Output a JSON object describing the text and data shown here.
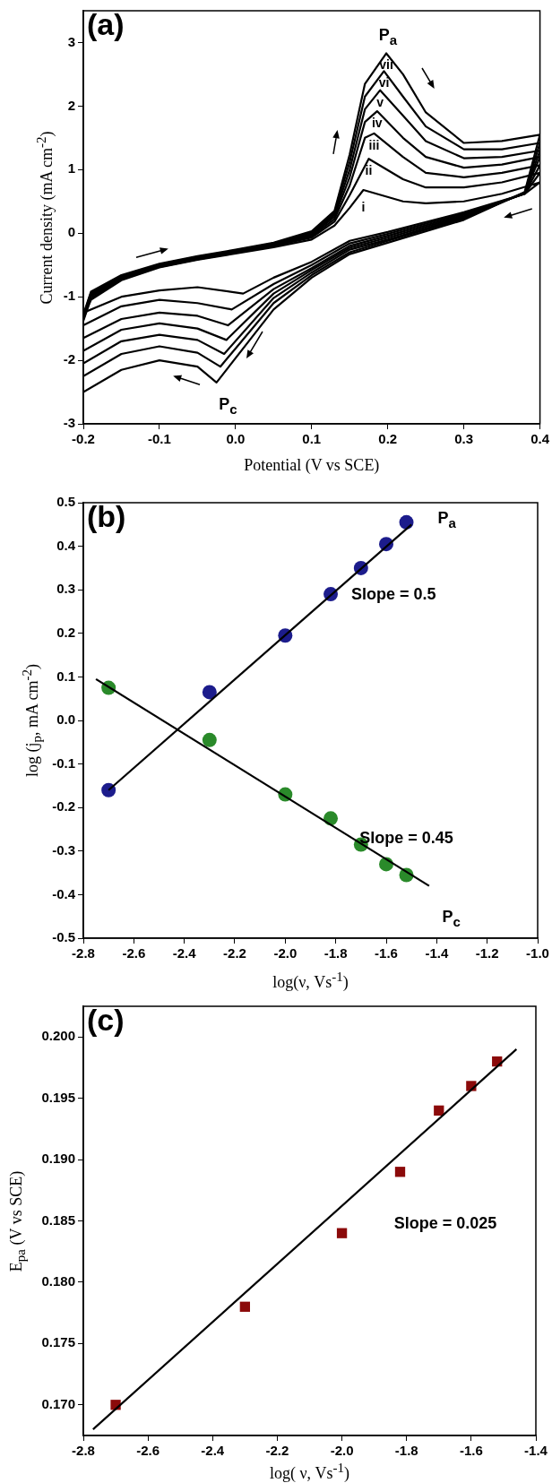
{
  "chart_data": [
    {
      "type": "line",
      "xlabel": "Potential (V vs SCE)",
      "ylabel": "Current density (mA cm$^{-2}$)",
      "xlim": [
        -0.2,
        0.4
      ],
      "xticks": [
        -0.2,
        -0.1,
        {
          "value": 0,
          "label": "0.0"
        },
        0.1,
        0.2,
        0.3,
        0.4
      ],
      "ylim": [
        -3,
        3.5
      ],
      "yticks": [
        -3,
        -2,
        -1,
        0,
        1,
        2,
        3
      ],
      "grid": false,
      "legend": false,
      "annotations": [
        "(a)",
        "P$_{a}$",
        "P$_{c}$"
      ],
      "series": [
        {
          "name": "i",
          "color": "#000000",
          "x": [
            -0.2,
            -0.19,
            -0.15,
            -0.1,
            -0.05,
            0,
            0.05,
            0.1,
            0.13,
            0.15,
            0.168,
            0.22,
            0.25,
            0.3,
            0.35,
            0.4,
            0.38,
            0.3,
            0.2,
            0.15,
            0.1,
            0.05,
            0.01,
            -0.05,
            -0.1,
            -0.15,
            -0.2
          ],
          "values": [
            -1.3,
            -1.05,
            -0.74,
            -0.54,
            -0.42,
            -0.32,
            -0.22,
            -0.1,
            0.12,
            0.4,
            0.68,
            0.5,
            0.47,
            0.5,
            0.62,
            0.8,
            0.62,
            0.33,
            0.02,
            -0.12,
            -0.45,
            -0.7,
            -0.95,
            -0.85,
            -0.9,
            -1.0,
            -1.25
          ]
        },
        {
          "name": "ii",
          "color": "#000000",
          "x": [
            -0.2,
            -0.19,
            -0.15,
            -0.1,
            -0.05,
            0,
            0.05,
            0.1,
            0.13,
            0.15,
            0.175,
            0.22,
            0.25,
            0.3,
            0.35,
            0.4,
            0.38,
            0.3,
            0.2,
            0.15,
            0.1,
            0.05,
            -0.005,
            -0.05,
            -0.1,
            -0.15,
            -0.2
          ],
          "values": [
            -1.38,
            -1.03,
            -0.72,
            -0.53,
            -0.41,
            -0.31,
            -0.2,
            -0.07,
            0.18,
            0.6,
            1.17,
            0.85,
            0.72,
            0.72,
            0.8,
            0.95,
            0.62,
            0.31,
            -0.01,
            -0.16,
            -0.5,
            -0.8,
            -1.2,
            -1.1,
            -1.05,
            -1.15,
            -1.45
          ]
        },
        {
          "name": "iii",
          "color": "#000000",
          "x": [
            -0.2,
            -0.19,
            -0.15,
            -0.1,
            -0.05,
            0,
            0.05,
            0.1,
            0.13,
            0.15,
            0.17,
            0.182,
            0.22,
            0.25,
            0.3,
            0.35,
            0.4,
            0.38,
            0.3,
            0.2,
            0.15,
            0.1,
            0.05,
            -0.01,
            -0.05,
            -0.1,
            -0.15,
            -0.2
          ],
          "values": [
            -1.36,
            -1.0,
            -0.71,
            -0.52,
            -0.4,
            -0.3,
            -0.19,
            -0.05,
            0.22,
            0.75,
            1.5,
            1.57,
            1.2,
            0.95,
            0.88,
            0.95,
            1.07,
            0.62,
            0.29,
            -0.04,
            -0.2,
            -0.55,
            -0.88,
            -1.45,
            -1.3,
            -1.25,
            -1.35,
            -1.65
          ]
        },
        {
          "name": "iv",
          "color": "#000000",
          "x": [
            -0.2,
            -0.19,
            -0.15,
            -0.1,
            -0.05,
            0,
            0.05,
            0.1,
            0.13,
            0.15,
            0.17,
            0.186,
            0.22,
            0.25,
            0.3,
            0.35,
            0.4,
            0.38,
            0.3,
            0.2,
            0.15,
            0.1,
            0.05,
            -0.012,
            -0.05,
            -0.1,
            -0.15,
            -0.2
          ],
          "values": [
            -1.34,
            -0.98,
            -0.7,
            -0.51,
            -0.39,
            -0.29,
            -0.18,
            -0.03,
            0.26,
            0.88,
            1.75,
            1.92,
            1.5,
            1.2,
            1.03,
            1.08,
            1.2,
            0.63,
            0.27,
            -0.07,
            -0.23,
            -0.58,
            -0.95,
            -1.68,
            -1.5,
            -1.42,
            -1.52,
            -1.85
          ]
        },
        {
          "name": "v",
          "color": "#000000",
          "x": [
            -0.2,
            -0.19,
            -0.15,
            -0.1,
            -0.05,
            0,
            0.05,
            0.1,
            0.13,
            0.15,
            0.17,
            0.19,
            0.22,
            0.25,
            0.3,
            0.35,
            0.4,
            0.38,
            0.3,
            0.2,
            0.15,
            0.1,
            0.05,
            -0.015,
            -0.05,
            -0.1,
            -0.15,
            -0.2
          ],
          "values": [
            -1.32,
            -0.96,
            -0.69,
            -0.5,
            -0.38,
            -0.28,
            -0.17,
            -0.01,
            0.29,
            1.0,
            1.95,
            2.25,
            1.85,
            1.45,
            1.18,
            1.2,
            1.3,
            0.63,
            0.25,
            -0.1,
            -0.26,
            -0.62,
            -1.02,
            -1.9,
            -1.68,
            -1.6,
            -1.7,
            -2.05
          ]
        },
        {
          "name": "vi",
          "color": "#000000",
          "x": [
            -0.2,
            -0.19,
            -0.15,
            -0.1,
            -0.05,
            0,
            0.05,
            0.1,
            0.13,
            0.15,
            0.17,
            0.195,
            0.22,
            0.25,
            0.3,
            0.35,
            0.4,
            0.38,
            0.3,
            0.2,
            0.15,
            0.1,
            0.05,
            -0.02,
            -0.05,
            -0.1,
            -0.15,
            -0.2
          ],
          "values": [
            -1.3,
            -0.94,
            -0.68,
            -0.49,
            -0.37,
            -0.27,
            -0.16,
            0.01,
            0.32,
            1.12,
            2.15,
            2.55,
            2.15,
            1.68,
            1.32,
            1.32,
            1.42,
            0.64,
            0.23,
            -0.12,
            -0.3,
            -0.66,
            -1.1,
            -2.1,
            -1.88,
            -1.78,
            -1.9,
            -2.25
          ]
        },
        {
          "name": "vii",
          "color": "#000000",
          "x": [
            -0.2,
            -0.19,
            -0.15,
            -0.1,
            -0.05,
            0,
            0.05,
            0.1,
            0.13,
            0.15,
            0.17,
            0.198,
            0.22,
            0.25,
            0.3,
            0.35,
            0.4,
            0.38,
            0.3,
            0.2,
            0.15,
            0.1,
            0.05,
            -0.025,
            -0.05,
            -0.1,
            -0.15,
            -0.2
          ],
          "values": [
            -1.28,
            -0.92,
            -0.66,
            -0.48,
            -0.36,
            -0.26,
            -0.15,
            0.03,
            0.35,
            1.24,
            2.35,
            2.83,
            2.5,
            1.9,
            1.42,
            1.45,
            1.55,
            0.65,
            0.21,
            -0.15,
            -0.33,
            -0.7,
            -1.2,
            -2.35,
            -2.1,
            -2.0,
            -2.15,
            -2.5
          ]
        }
      ]
    },
    {
      "type": "scatter",
      "xlabel": "log(ν, Vs$^{-1}$)",
      "ylabel": "log (j$_{p}$, mA cm$^{-2}$)",
      "x": [
        -2.7,
        -2.3,
        -2.0,
        -1.82,
        -1.7,
        -1.6,
        -1.52
      ],
      "xlim": [
        -2.8,
        -1.0
      ],
      "xticks": [
        -2.8,
        -2.6,
        -2.4,
        -2.2,
        {
          "value": -2.0,
          "label": "-2.0"
        },
        -1.8,
        -1.6,
        -1.4,
        -1.2,
        {
          "value": -1.0,
          "label": "-1.0"
        }
      ],
      "ylim": [
        -0.5,
        0.5
      ],
      "yticks": [
        -0.5,
        -0.4,
        -0.3,
        -0.2,
        -0.1,
        {
          "value": 0,
          "label": "0.0"
        },
        0.1,
        0.2,
        0.3,
        0.4,
        0.5
      ],
      "grid": false,
      "legend": false,
      "annotations": [
        "(b)",
        "P$_{a}$",
        "Slope = 0.5",
        "Slope = 0.45",
        "P$_{c}$"
      ],
      "series": [
        {
          "type": "scatter",
          "marker": "circle",
          "color": "#1c1c8c",
          "values": [
            -0.16,
            0.065,
            0.195,
            0.29,
            0.35,
            0.405,
            0.455
          ]
        },
        {
          "type": "scatter",
          "marker": "circle",
          "color": "#2a8a2a",
          "values": [
            0.075,
            -0.045,
            -0.17,
            -0.225,
            -0.285,
            -0.33,
            -0.355
          ]
        },
        {
          "type": "line",
          "color": "#000000",
          "x": [
            -2.7,
            -1.5
          ],
          "values": [
            -0.16,
            0.45
          ]
        },
        {
          "type": "line",
          "color": "#000000",
          "x": [
            -2.75,
            -1.43
          ],
          "values": [
            0.095,
            -0.38
          ]
        }
      ]
    },
    {
      "type": "scatter",
      "xlabel": "log( ν, Vs$^{-1}$)",
      "ylabel": "E$_{pa}$ (V vs SCE)",
      "x": [
        -2.7,
        -2.3,
        -2.0,
        -1.82,
        -1.7,
        -1.6,
        -1.52
      ],
      "xlim": [
        -2.8,
        -1.4
      ],
      "xticks": [
        -2.8,
        -2.6,
        -2.4,
        -2.2,
        {
          "value": -2.0,
          "label": "-2.0"
        },
        -1.8,
        -1.6,
        -1.4
      ],
      "ylim": [
        0.1675,
        0.2025
      ],
      "yticks": [
        {
          "value": 0.17,
          "label": "0.170"
        },
        0.175,
        {
          "value": 0.18,
          "label": "0.180"
        },
        0.185,
        {
          "value": 0.19,
          "label": "0.190"
        },
        0.195,
        {
          "value": 0.2,
          "label": "0.200"
        }
      ],
      "grid": false,
      "legend": false,
      "annotations": [
        "(c)",
        "Slope = 0.025"
      ],
      "series": [
        {
          "type": "scatter",
          "marker": "square",
          "color": "#8b0a0a",
          "values": [
            0.17,
            0.178,
            0.184,
            0.189,
            0.194,
            0.196,
            0.198
          ]
        },
        {
          "type": "line",
          "color": "#000000",
          "x": [
            -2.77,
            -1.46
          ],
          "values": [
            0.168,
            0.199
          ]
        }
      ]
    }
  ]
}
